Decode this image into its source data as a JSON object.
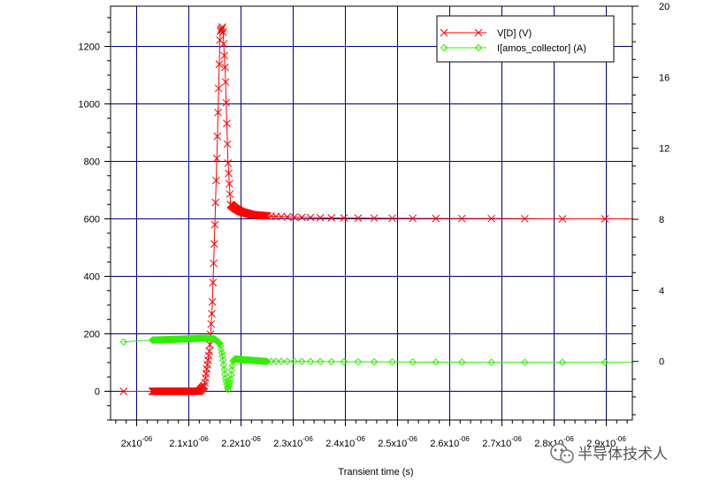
{
  "chart_data": {
    "type": "line",
    "title": "",
    "xlabel": "Transient time (s)",
    "ylabel_left": "",
    "ylabel_right": "",
    "xlim": [
      1.95e-06,
      2.95e-06
    ],
    "ylim_left": [
      -100,
      1340
    ],
    "ylim_right": [
      -3.3,
      20
    ],
    "x_tick_values": [
      2e-06,
      2.1e-06,
      2.2e-06,
      2.3e-06,
      2.4e-06,
      2.5e-06,
      2.6e-06,
      2.7e-06,
      2.8e-06,
      2.9e-06
    ],
    "x_tick_labels": [
      {
        "mant": "2x10",
        "exp": "-06"
      },
      {
        "mant": "2.1x10",
        "exp": "-06"
      },
      {
        "mant": "2.2x10",
        "exp": "-06"
      },
      {
        "mant": "2.3x10",
        "exp": "-06"
      },
      {
        "mant": "2.4x10",
        "exp": "-06"
      },
      {
        "mant": "2.5x10",
        "exp": "-06"
      },
      {
        "mant": "2.6x10",
        "exp": "-06"
      },
      {
        "mant": "2.7x10",
        "exp": "-06"
      },
      {
        "mant": "2.8x10",
        "exp": "-06"
      },
      {
        "mant": "2.9x10",
        "exp": "-06"
      }
    ],
    "y_left_ticks": [
      0,
      200,
      400,
      600,
      800,
      1000,
      1200
    ],
    "y_left_tick_labels": [
      "0",
      "200",
      "400",
      "600",
      "800",
      "1000",
      "1200"
    ],
    "y_right_ticks": [
      0,
      4,
      8,
      12,
      16,
      20
    ],
    "y_right_tick_labels": [
      "0",
      "4",
      "8",
      "12",
      "16",
      "20"
    ],
    "grid": true,
    "legend_position": "top-right",
    "series": [
      {
        "name": "V[D] (V)",
        "axis": "left",
        "color": "#ff0000",
        "marker": "x",
        "x": [
          1.975e-06,
          2.03e-06,
          2.08e-06,
          2.12e-06,
          2.13e-06,
          2.14e-06,
          2.145e-06,
          2.15e-06,
          2.155e-06,
          2.16e-06,
          2.165e-06,
          2.17e-06,
          2.175e-06,
          2.18e-06,
          2.19e-06,
          2.2e-06,
          2.22e-06,
          2.25e-06,
          2.3e-06,
          2.35e-06,
          2.4e-06,
          2.5e-06,
          2.6e-06,
          2.7e-06,
          2.8e-06,
          2.95e-06
        ],
        "y": [
          0,
          0,
          0,
          0,
          20,
          150,
          300,
          580,
          900,
          1250,
          1270,
          1100,
          800,
          650,
          635,
          625,
          615,
          610,
          606,
          604,
          603,
          602,
          601,
          601,
          600,
          600
        ]
      },
      {
        "name": "I[amos_collector] (A)",
        "axis": "right",
        "color": "#33ee00",
        "marker": "diamond",
        "x": [
          1.975e-06,
          2.03e-06,
          2.08e-06,
          2.12e-06,
          2.14e-06,
          2.15e-06,
          2.16e-06,
          2.165e-06,
          2.17e-06,
          2.175e-06,
          2.18e-06,
          2.185e-06,
          2.19e-06,
          2.2e-06,
          2.25e-06,
          2.3e-06,
          2.4e-06,
          2.5e-06,
          2.6e-06,
          2.7e-06,
          2.8e-06,
          2.95e-06
        ],
        "y": [
          1.1,
          1.2,
          1.25,
          1.3,
          1.3,
          1.25,
          1.0,
          0.2,
          -0.9,
          -1.6,
          -1.0,
          0.05,
          0.15,
          0.1,
          0.0,
          0.0,
          -0.02,
          -0.03,
          -0.04,
          -0.05,
          -0.05,
          -0.05
        ]
      }
    ]
  },
  "watermark": {
    "text": "半导体技术人",
    "icon": "wechat-icon"
  },
  "colors": {
    "grid": "#000088",
    "frame": "#000000"
  }
}
